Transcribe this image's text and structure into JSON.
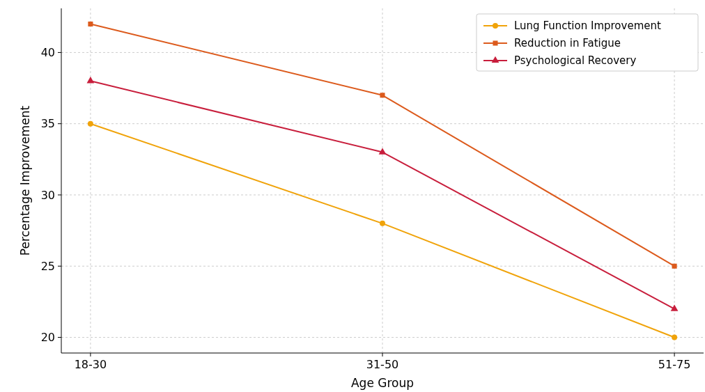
{
  "chart_data": {
    "type": "line",
    "xlabel": "Age Group",
    "ylabel": "Percentage Improvement",
    "categories": [
      "18-30",
      "31-50",
      "51-75"
    ],
    "series": [
      {
        "name": "Lung Function Improvement",
        "color": "#f0a30a",
        "marker": "circle",
        "values": [
          35,
          28,
          20
        ]
      },
      {
        "name": "Reduction in Fatigue",
        "color": "#dc5a1c",
        "marker": "square",
        "values": [
          42,
          37,
          25
        ]
      },
      {
        "name": "Psychological Recovery",
        "color": "#c81e3c",
        "marker": "triangle",
        "values": [
          38,
          33,
          22
        ]
      }
    ],
    "ylim": [
      18.9,
      43.1
    ],
    "yticks": [
      20,
      25,
      30,
      35,
      40
    ],
    "grid": true,
    "legend": "top right",
    "line_style": "solid"
  }
}
